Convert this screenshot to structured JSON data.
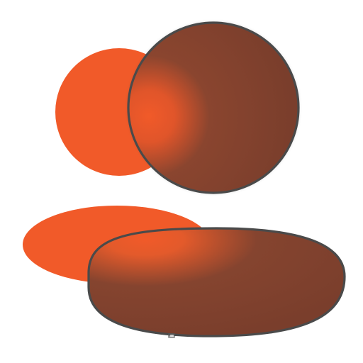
{
  "icon": {
    "name": "users-group-icon",
    "colors": {
      "accent_orange": "#f15a29",
      "shadow_brown": "#7a3e2c",
      "rim_gray": "#4a4a4a",
      "background": "#ffffff"
    }
  }
}
